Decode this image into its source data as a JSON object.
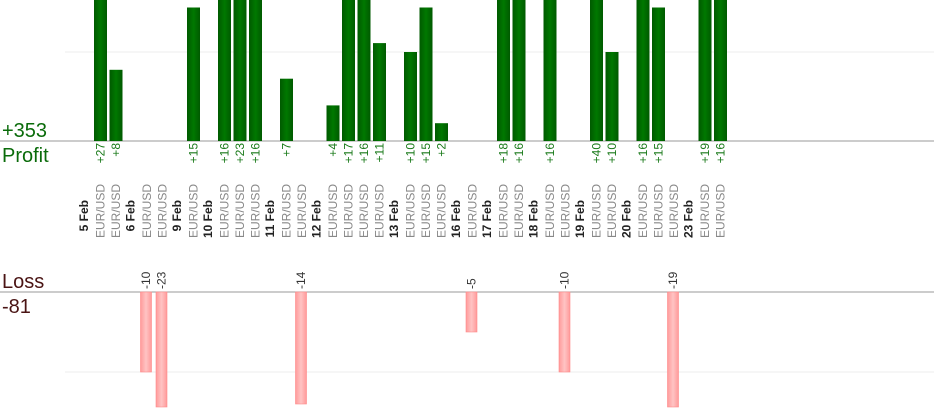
{
  "summary": {
    "profit_total": "+353",
    "profit_label": "Profit",
    "loss_label": "Loss",
    "loss_total": "-81"
  },
  "chart_data": {
    "type": "bar",
    "colors": {
      "profit": "#006400",
      "loss": "#ffb3b3",
      "label_profit": "#1a7a1a",
      "label_loss": "#333333",
      "instrument": "#888888"
    },
    "groups": [
      {
        "date": "5 Feb",
        "trades": [
          {
            "pair": "EUR/USD",
            "value": 27,
            "label": "+27"
          },
          {
            "pair": "EUR/USD",
            "value": 8,
            "label": "+8"
          }
        ]
      },
      {
        "date": "6 Feb",
        "trades": [
          {
            "pair": "EUR/USD",
            "value": -10,
            "label": "-10"
          },
          {
            "pair": "EUR/USD",
            "value": -23,
            "label": "-23"
          }
        ]
      },
      {
        "date": "9 Feb",
        "trades": [
          {
            "pair": "EUR/USD",
            "value": 15,
            "label": "+15"
          }
        ]
      },
      {
        "date": "10 Feb",
        "trades": [
          {
            "pair": "EUR/USD",
            "value": 16,
            "label": "+16"
          },
          {
            "pair": "EUR/USD",
            "value": 23,
            "label": "+23"
          },
          {
            "pair": "EUR/USD",
            "value": 16,
            "label": "+16"
          }
        ]
      },
      {
        "date": "11 Feb",
        "trades": [
          {
            "pair": "EUR/USD",
            "value": 7,
            "label": "+7"
          },
          {
            "pair": "EUR/USD",
            "value": -14,
            "label": "-14"
          }
        ]
      },
      {
        "date": "12 Feb",
        "trades": [
          {
            "pair": "EUR/USD",
            "value": 4,
            "label": "+4"
          },
          {
            "pair": "EUR/USD",
            "value": 17,
            "label": "+17"
          },
          {
            "pair": "EUR/USD",
            "value": 16,
            "label": "+16"
          },
          {
            "pair": "EUR/USD",
            "value": 11,
            "label": "+11"
          }
        ]
      },
      {
        "date": "13 Feb",
        "trades": [
          {
            "pair": "EUR/USD",
            "value": 10,
            "label": "+10"
          },
          {
            "pair": "EUR/USD",
            "value": 15,
            "label": "+15"
          },
          {
            "pair": "EUR/USD",
            "value": 2,
            "label": "+2"
          }
        ]
      },
      {
        "date": "16 Feb",
        "trades": [
          {
            "pair": "EUR/USD",
            "value": -5,
            "label": "-5"
          }
        ]
      },
      {
        "date": "17 Feb",
        "trades": [
          {
            "pair": "EUR/USD",
            "value": 18,
            "label": "+18"
          },
          {
            "pair": "EUR/USD",
            "value": 16,
            "label": "+16"
          }
        ]
      },
      {
        "date": "18 Feb",
        "trades": [
          {
            "pair": "EUR/USD",
            "value": 16,
            "label": "+16"
          },
          {
            "pair": "EUR/USD",
            "value": -10,
            "label": "-10"
          }
        ]
      },
      {
        "date": "19 Feb",
        "trades": [
          {
            "pair": "EUR/USD",
            "value": 40,
            "label": "+40"
          },
          {
            "pair": "EUR/USD",
            "value": 10,
            "label": "+10"
          }
        ]
      },
      {
        "date": "20 Feb",
        "trades": [
          {
            "pair": "EUR/USD",
            "value": 16,
            "label": "+16"
          },
          {
            "pair": "EUR/USD",
            "value": 15,
            "label": "+15"
          },
          {
            "pair": "EUR/USD",
            "value": -19,
            "label": "-19"
          }
        ]
      },
      {
        "date": "23 Feb",
        "trades": [
          {
            "pair": "EUR/USD",
            "value": 19,
            "label": "+19"
          },
          {
            "pair": "EUR/USD",
            "value": 16,
            "label": "+16"
          }
        ]
      }
    ],
    "profit_axis_max": 15,
    "loss_axis_max": 22,
    "grid": true
  }
}
